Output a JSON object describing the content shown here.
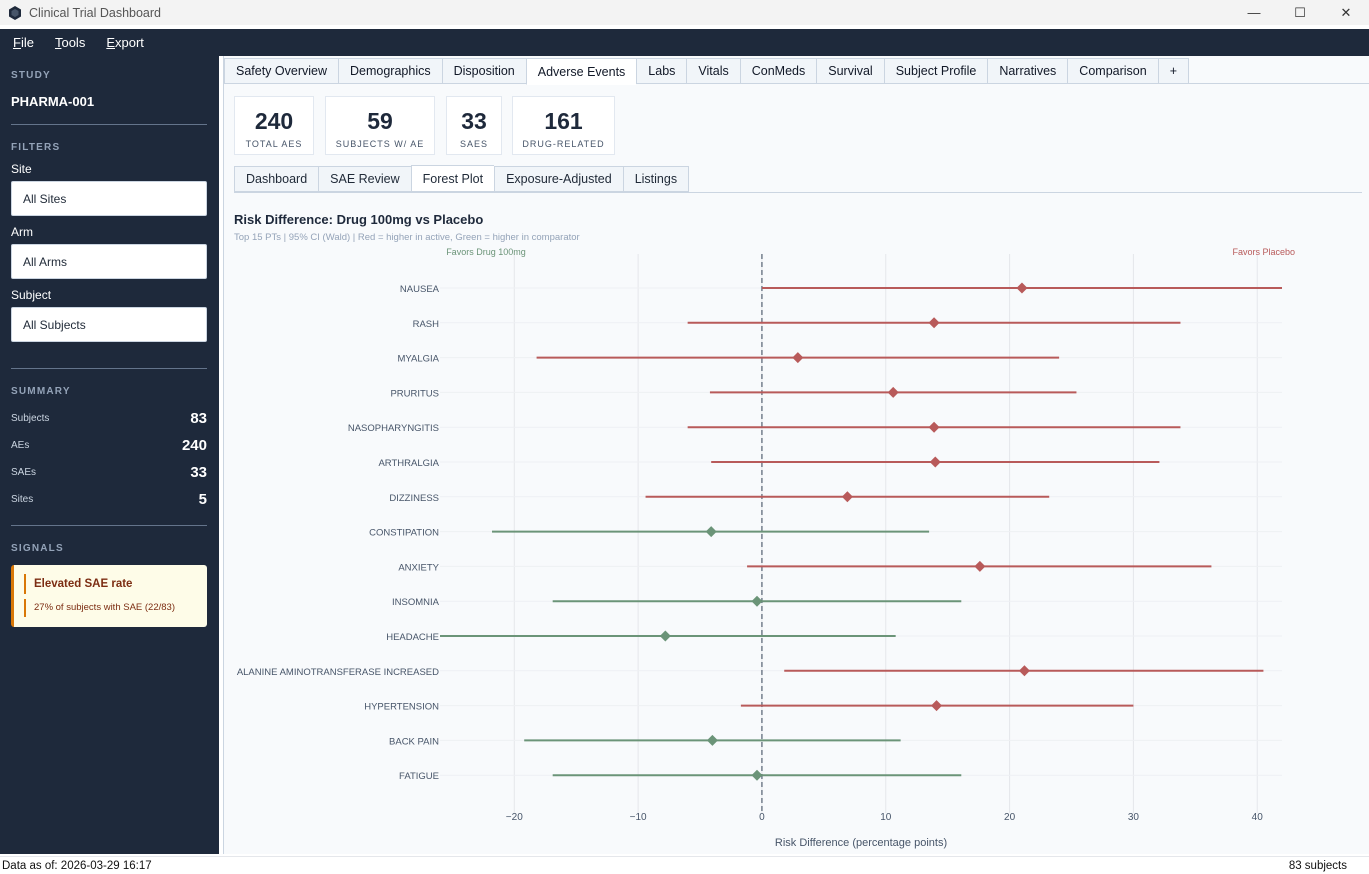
{
  "window": {
    "title": "Clinical Trial Dashboard",
    "controls": [
      "—",
      "☐",
      "✕"
    ]
  },
  "menu": [
    {
      "id": "file",
      "label": "File"
    },
    {
      "id": "tools",
      "label": "Tools"
    },
    {
      "id": "export",
      "label": "Export"
    }
  ],
  "sidebar": {
    "study_heading": "STUDY",
    "study_name": "PHARMA-001",
    "filters_heading": "FILTERS",
    "filters": [
      {
        "label": "Site",
        "value": "All Sites"
      },
      {
        "label": "Arm",
        "value": "All Arms"
      },
      {
        "label": "Subject",
        "value": "All Subjects"
      }
    ],
    "summary_heading": "SUMMARY",
    "summary": [
      {
        "label": "Subjects",
        "value": "83"
      },
      {
        "label": "AEs",
        "value": "240"
      },
      {
        "label": "SAEs",
        "value": "33"
      },
      {
        "label": "Sites",
        "value": "5"
      }
    ],
    "signals_heading": "SIGNALS",
    "signal": {
      "title": "Elevated SAE rate",
      "text": "27% of subjects with SAE (22/83)"
    }
  },
  "tabs": [
    "Safety Overview",
    "Demographics",
    "Disposition",
    "Adverse Events",
    "Labs",
    "Vitals",
    "ConMeds",
    "Survival",
    "Subject Profile",
    "Narratives",
    "Comparison",
    "+"
  ],
  "active_tab": "Adverse Events",
  "cards": [
    {
      "value": "240",
      "label": "TOTAL AES"
    },
    {
      "value": "59",
      "label": "SUBJECTS W/ AE"
    },
    {
      "value": "33",
      "label": "SAES"
    },
    {
      "value": "161",
      "label": "DRUG-RELATED"
    }
  ],
  "subtabs": [
    "Dashboard",
    "SAE Review",
    "Forest Plot",
    "Exposure-Adjusted",
    "Listings"
  ],
  "active_subtab": "Forest Plot",
  "chart_data": {
    "type": "scatter",
    "title": "Risk Difference: Drug 100mg vs Placebo",
    "subtitle": "Top 15 PTs | 95% CI (Wald) | Red = higher in active, Green = higher in comparator",
    "xlabel": "Risk Difference (percentage points)",
    "xlim": [
      -26,
      42
    ],
    "xticks": [
      -20,
      -10,
      0,
      10,
      20,
      30,
      40
    ],
    "xtick_labels": [
      "−20",
      "−10",
      "0",
      "10",
      "20",
      "30",
      "40"
    ],
    "annotation_left": "Favors Drug 100mg",
    "annotation_right": "Favors Placebo",
    "colors": {
      "positive": "#b85a5a",
      "negative": "#6b9478"
    },
    "points": [
      {
        "term": "NAUSEA",
        "rd": 21.0,
        "lo": 0.0,
        "hi": 42.0
      },
      {
        "term": "RASH",
        "rd": 13.9,
        "lo": -6.0,
        "hi": 33.8
      },
      {
        "term": "MYALGIA",
        "rd": 2.9,
        "lo": -18.2,
        "hi": 24.0
      },
      {
        "term": "PRURITUS",
        "rd": 10.6,
        "lo": -4.2,
        "hi": 25.4
      },
      {
        "term": "NASOPHARYNGITIS",
        "rd": 13.9,
        "lo": -6.0,
        "hi": 33.8
      },
      {
        "term": "ARTHRALGIA",
        "rd": 14.0,
        "lo": -4.1,
        "hi": 32.1
      },
      {
        "term": "DIZZINESS",
        "rd": 6.9,
        "lo": -9.4,
        "hi": 23.2
      },
      {
        "term": "CONSTIPATION",
        "rd": -4.1,
        "lo": -21.8,
        "hi": 13.5
      },
      {
        "term": "ANXIETY",
        "rd": 17.6,
        "lo": -1.2,
        "hi": 36.3
      },
      {
        "term": "INSOMNIA",
        "rd": -0.4,
        "lo": -16.9,
        "hi": 16.1
      },
      {
        "term": "HEADACHE",
        "rd": -7.8,
        "lo": -26.4,
        "hi": 10.8
      },
      {
        "term": "ALANINE AMINOTRANSFERASE INCREASED",
        "rd": 21.2,
        "lo": 1.8,
        "hi": 40.5
      },
      {
        "term": "HYPERTENSION",
        "rd": 14.1,
        "lo": -1.7,
        "hi": 30.0
      },
      {
        "term": "BACK PAIN",
        "rd": -4.0,
        "lo": -19.2,
        "hi": 11.2
      },
      {
        "term": "FATIGUE",
        "rd": -0.4,
        "lo": -16.9,
        "hi": 16.1
      }
    ]
  },
  "statusbar": {
    "left": "Data as of: 2026-03-29 16:17",
    "right": "83 subjects"
  }
}
